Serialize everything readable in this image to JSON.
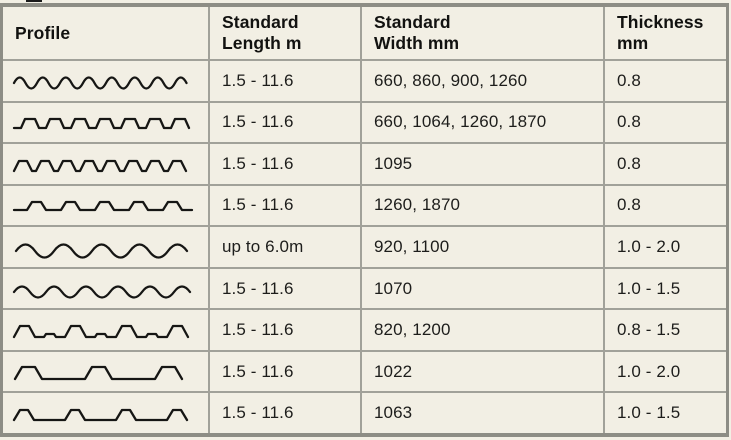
{
  "page": {
    "background": "#f2efe4",
    "grid_line_color": "#a1a199",
    "outer_border_color": "#8d8d85",
    "ink_color": "#1d1d1b"
  },
  "table": {
    "columns": [
      {
        "label": "Profile"
      },
      {
        "label": "Standard\nLength m"
      },
      {
        "label": "Standard\nWidth mm"
      },
      {
        "label": "Thickness\nmm"
      }
    ],
    "rows": [
      {
        "profile": "sine-fine-corrugated",
        "length": "1.5 - 11.6",
        "width": "660, 860, 900, 1260",
        "thickness": "0.8"
      },
      {
        "profile": "rounded-square-corrugated",
        "length": "1.5 - 11.6",
        "width": "660, 1064, 1260, 1870",
        "thickness": "0.8"
      },
      {
        "profile": "trapezoid-dense",
        "length": "1.5 - 11.6",
        "width": "1095",
        "thickness": "0.8"
      },
      {
        "profile": "low-bump-spaced",
        "length": "1.5 - 11.6",
        "width": "1260, 1870",
        "thickness": "0.8"
      },
      {
        "profile": "sine-large",
        "length": "up to 6.0m",
        "width": "920, 1100",
        "thickness": "1.0 - 2.0"
      },
      {
        "profile": "sine-medium",
        "length": "1.5 - 11.6",
        "width": "1070",
        "thickness": "1.0 - 1.5"
      },
      {
        "profile": "rib-with-seams",
        "length": "1.5 - 11.6",
        "width": "820, 1200",
        "thickness": "0.8 - 1.5"
      },
      {
        "profile": "wide-spaced-ribs",
        "length": "1.5 - 11.6",
        "width": "1022",
        "thickness": "1.0 - 2.0"
      },
      {
        "profile": "narrow-spaced-ribs",
        "length": "1.5 - 11.6",
        "width": "1063",
        "thickness": "1.0 - 1.5"
      }
    ]
  }
}
